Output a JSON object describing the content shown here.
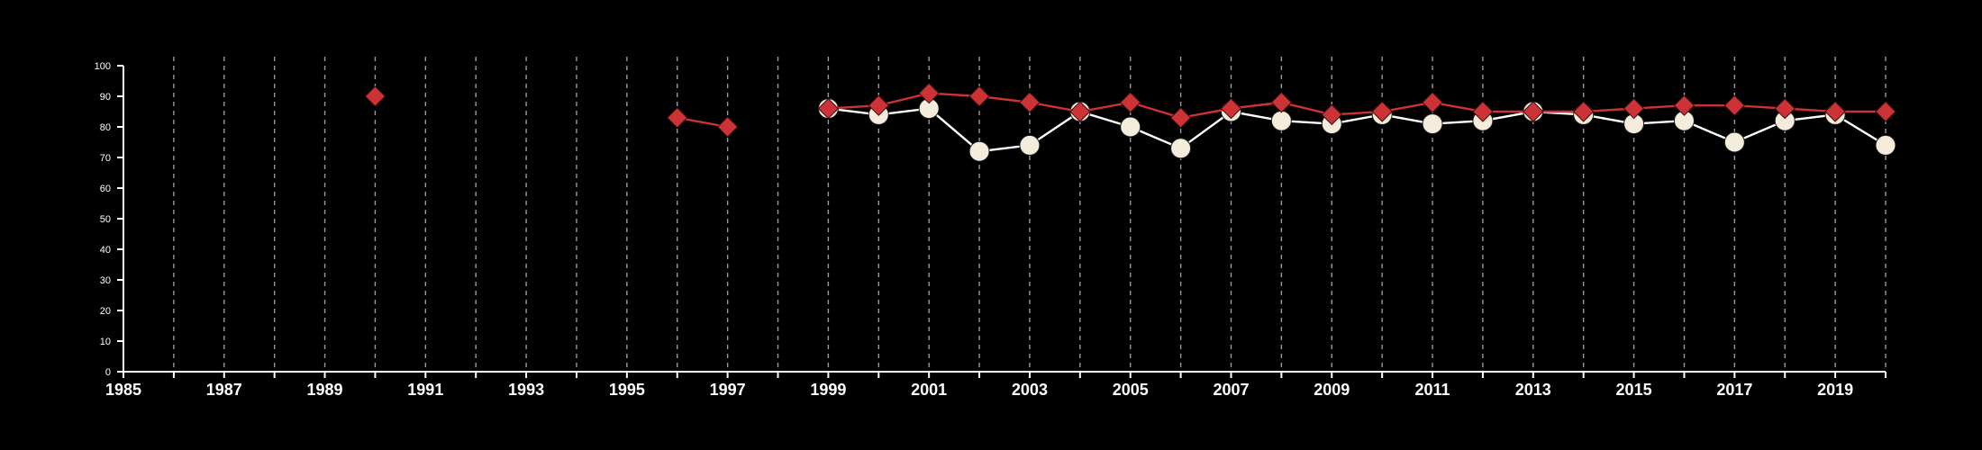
{
  "chart_data": {
    "type": "line",
    "title": "",
    "xlabel": "",
    "ylabel": "",
    "xlim": [
      1985,
      2020
    ],
    "ylim": [
      0,
      100
    ],
    "x_ticks": [
      1985,
      1986,
      1987,
      1988,
      1989,
      1990,
      1991,
      1992,
      1993,
      1994,
      1995,
      1996,
      1997,
      1998,
      1999,
      2000,
      2001,
      2002,
      2003,
      2004,
      2005,
      2006,
      2007,
      2008,
      2009,
      2010,
      2011,
      2012,
      2013,
      2014,
      2015,
      2016,
      2017,
      2018,
      2019,
      2020
    ],
    "x_tick_labels": [
      "1985",
      "1987",
      "1989",
      "1991",
      "1993",
      "1995",
      "1997",
      "1999",
      "2001",
      "2003",
      "2005",
      "2007",
      "2009",
      "2011",
      "2013",
      "2015",
      "2017",
      "2019"
    ],
    "y_ticks": [
      0,
      10,
      20,
      30,
      40,
      50,
      60,
      70,
      80,
      90,
      100
    ],
    "y_tick_labels": [
      "0",
      "10",
      "20",
      "30",
      "40",
      "50",
      "60",
      "70",
      "80",
      "90",
      "100"
    ],
    "grid": {
      "vertical": true,
      "horizontal": false,
      "style": "dashed"
    },
    "series": [
      {
        "marker": "circle",
        "color": "#f5ecdc",
        "line_color": "#ffffff",
        "x": [
          1999,
          2000,
          2001,
          2002,
          2003,
          2004,
          2005,
          2006,
          2007,
          2008,
          2009,
          2010,
          2011,
          2012,
          2013,
          2014,
          2015,
          2016,
          2017,
          2018,
          2019,
          2020
        ],
        "y": [
          86,
          84,
          86,
          72,
          74,
          85,
          80,
          73,
          85,
          82,
          81,
          84,
          81,
          82,
          85,
          84,
          81,
          82,
          75,
          82,
          84,
          74
        ]
      },
      {
        "marker": "diamond",
        "color": "#cd3336",
        "line_color": "#cd3336",
        "x": [
          1990,
          1996,
          1997,
          1999,
          2000,
          2001,
          2002,
          2003,
          2004,
          2005,
          2006,
          2007,
          2008,
          2009,
          2010,
          2011,
          2012,
          2013,
          2014,
          2015,
          2016,
          2017,
          2018,
          2019,
          2020
        ],
        "y": [
          90,
          83,
          80,
          86,
          87,
          91,
          90,
          88,
          85,
          88,
          83,
          86,
          88,
          84,
          85,
          88,
          85,
          85,
          85,
          86,
          87,
          87,
          86,
          85,
          85
        ]
      }
    ]
  }
}
